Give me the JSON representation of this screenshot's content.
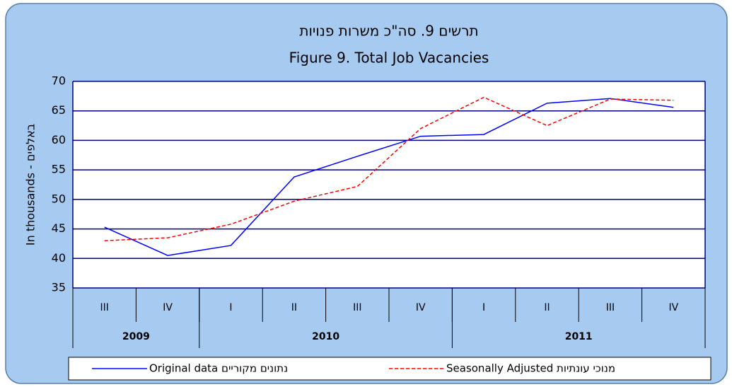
{
  "chart_data": {
    "type": "line",
    "title": "תרשים 9. סה\"כ משרות פנויות",
    "subtitle": "Figure 9. Total Job Vacancies",
    "y_label": "In thousands - באלפים",
    "categories": [
      "III",
      "IV",
      "I",
      "II",
      "III",
      "IV",
      "I",
      "II",
      "III",
      "IV"
    ],
    "category_groups": [
      {
        "name": "2009",
        "size": 2
      },
      {
        "name": "2010",
        "size": 4
      },
      {
        "name": "2011",
        "size": 4
      }
    ],
    "series": [
      {
        "name": "Original data  נתונים מקוריים",
        "color": "#0000ff",
        "dash": false,
        "values": [
          45.3,
          40.5,
          42.2,
          53.8,
          57.3,
          60.7,
          61.0,
          66.3,
          67.1,
          65.6
        ]
      },
      {
        "name": "Seasonally Adjusted  מנוכי עונתיות",
        "color": "#ff0000",
        "dash": true,
        "values": [
          43.0,
          43.5,
          45.8,
          49.7,
          52.2,
          62.0,
          67.3,
          62.5,
          67.0,
          66.8
        ]
      }
    ],
    "ylim": [
      35,
      70
    ],
    "yticks": [
      35,
      40,
      45,
      50,
      55,
      60,
      65,
      70
    ],
    "grid": true,
    "legend": "bottom"
  }
}
